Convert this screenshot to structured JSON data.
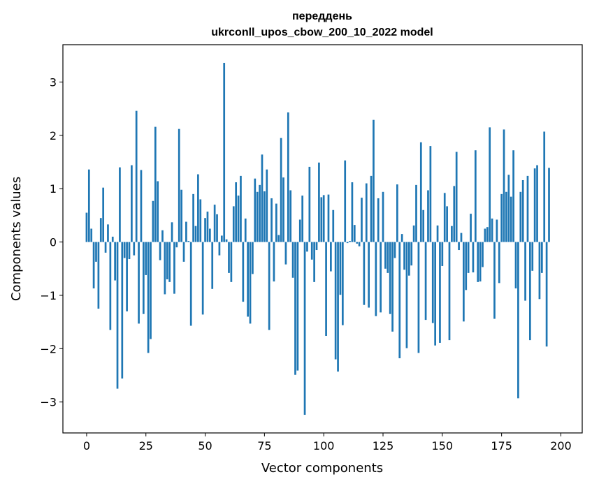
{
  "chart_data": {
    "type": "bar",
    "title_line1": "переддень",
    "title_line2": "ukrconll_upos_cbow_200_10_2022 model",
    "xlabel": "Vector components",
    "ylabel": "Components values",
    "xlim": [
      -10,
      209
    ],
    "ylim": [
      -3.58,
      3.7
    ],
    "xticks": [
      0,
      25,
      50,
      75,
      100,
      125,
      150,
      175,
      200
    ],
    "xtick_labels": [
      "0",
      "25",
      "50",
      "75",
      "100",
      "125",
      "150",
      "175",
      "200"
    ],
    "yticks": [
      -3,
      -2,
      -1,
      0,
      1,
      2,
      3
    ],
    "ytick_labels": [
      "−3",
      "−2",
      "−1",
      "0",
      "1",
      "2",
      "3"
    ],
    "bar_color": "#1f77b4",
    "values": [
      0.55,
      1.36,
      0.25,
      -0.87,
      -0.37,
      -1.25,
      0.45,
      1.02,
      -0.2,
      0.33,
      -1.65,
      0.1,
      -0.72,
      -2.75,
      1.4,
      -2.56,
      -0.3,
      -1.3,
      -0.32,
      1.44,
      -0.25,
      2.46,
      -1.53,
      1.35,
      -1.35,
      -0.62,
      -2.08,
      -1.82,
      0.77,
      2.16,
      1.14,
      -0.34,
      0.22,
      -0.98,
      -0.7,
      -0.75,
      0.37,
      -0.97,
      -0.1,
      2.12,
      0.98,
      -0.37,
      0.38,
      0.02,
      -1.57,
      0.9,
      0.3,
      1.27,
      0.8,
      -1.36,
      0.45,
      0.57,
      0.25,
      -0.88,
      0.7,
      0.52,
      -0.25,
      0.12,
      3.36,
      0.05,
      -0.58,
      -0.75,
      0.67,
      1.12,
      0.87,
      1.24,
      -1.12,
      0.44,
      -1.4,
      -1.53,
      -0.6,
      1.19,
      0.94,
      1.07,
      1.64,
      0.95,
      1.36,
      -1.65,
      0.82,
      -0.74,
      0.72,
      0.13,
      1.95,
      1.21,
      -0.42,
      2.43,
      0.97,
      -0.67,
      -2.49,
      -2.41,
      0.42,
      0.87,
      -3.24,
      -0.18,
      1.41,
      -0.33,
      -0.75,
      -0.15,
      1.49,
      0.84,
      0.88,
      -1.76,
      0.89,
      -0.55,
      0.6,
      -2.2,
      -2.43,
      -0.99,
      -1.56,
      1.53,
      -0.02,
      0.02,
      1.12,
      0.32,
      -0.03,
      -0.08,
      0.83,
      -1.18,
      1.1,
      -1.23,
      1.24,
      2.29,
      -1.39,
      0.82,
      -1.32,
      0.94,
      -0.5,
      -0.58,
      -1.35,
      -1.68,
      -0.3,
      1.08,
      -2.18,
      0.15,
      -0.52,
      -1.99,
      -0.63,
      -0.44,
      0.31,
      1.07,
      -2.08,
      1.87,
      0.6,
      -1.46,
      0.97,
      1.8,
      -1.52,
      -1.94,
      0.31,
      -1.89,
      -0.45,
      0.92,
      0.67,
      -1.84,
      0.3,
      1.05,
      1.69,
      -0.15,
      0.17,
      -1.49,
      -0.9,
      -0.58,
      0.53,
      -0.57,
      1.72,
      -0.75,
      -0.74,
      -0.47,
      0.25,
      0.28,
      2.15,
      0.44,
      -1.44,
      0.42,
      -0.77,
      0.9,
      2.11,
      0.94,
      1.26,
      0.85,
      1.72,
      -0.87,
      -2.93,
      0.94,
      1.16,
      -1.1,
      1.24,
      -1.84,
      -0.54,
      1.38,
      1.44,
      -1.07,
      -0.58,
      2.07,
      -1.96,
      1.39
    ]
  }
}
